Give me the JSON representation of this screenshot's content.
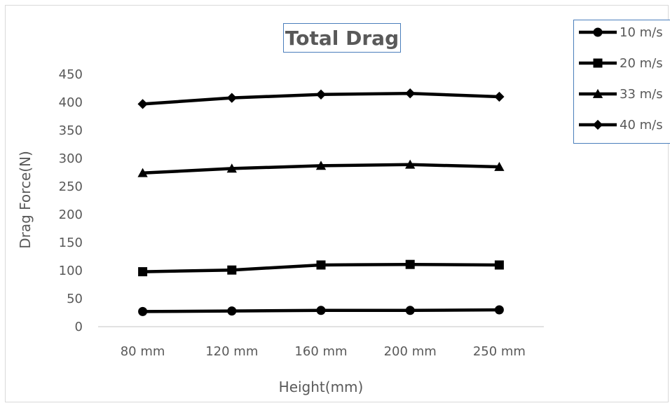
{
  "chart_data": {
    "type": "line",
    "title": "Total Drag",
    "xlabel": "Height(mm)",
    "ylabel": "Drag Force(N)",
    "categories": [
      "80 mm",
      "120 mm",
      "160 mm",
      "200 mm",
      "250 mm"
    ],
    "ylim": [
      0,
      450
    ],
    "yticks": [
      0,
      50,
      100,
      150,
      200,
      250,
      300,
      350,
      400,
      450
    ],
    "grid": false,
    "legend_position": "top-right",
    "series": [
      {
        "name": "10 m/s",
        "marker": "circle",
        "values": [
          27,
          28,
          29,
          29,
          30
        ]
      },
      {
        "name": "20 m/s",
        "marker": "square",
        "values": [
          98,
          101,
          110,
          111,
          110
        ]
      },
      {
        "name": "33 m/s",
        "marker": "triangle",
        "values": [
          274,
          282,
          287,
          289,
          285
        ]
      },
      {
        "name": "40 m/s",
        "marker": "diamond",
        "values": [
          397,
          408,
          414,
          416,
          410
        ]
      }
    ],
    "colors": {
      "line": "#000000",
      "text": "#595959",
      "title_border": "#4a7ebb",
      "legend_border": "#4a7ebb",
      "axis": "#d9d9d9",
      "frame": "#d9d9d9"
    }
  }
}
